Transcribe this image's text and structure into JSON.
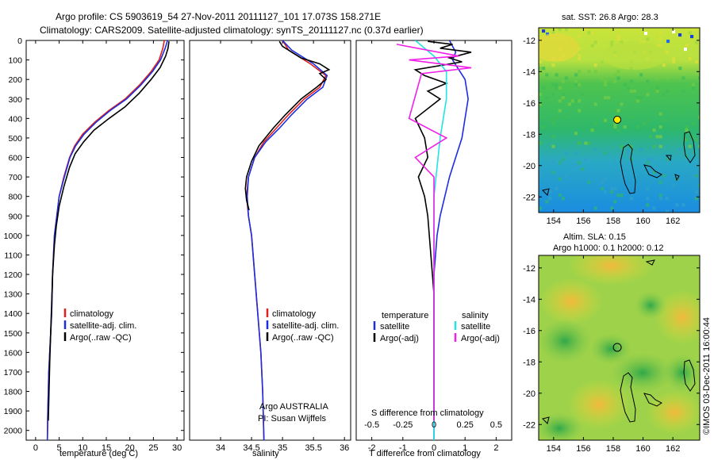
{
  "header": {
    "line1": "Argo profile: CS 5903619_54 27-Nov-2011 20111127_101 17.073S 158.271E",
    "line2": "Climatology: CARS2009. Satellite-adjusted climatology: synTS_20111127.nc (0.37d earlier)"
  },
  "colors": {
    "climatology": "#e0201c",
    "satellite": "#1c2ee0",
    "argo": "#000000",
    "salinity_satellite": "#22e4e4",
    "salinity_argo": "#f020e8"
  },
  "chart_data": [
    {
      "type": "line",
      "title": "temperature",
      "xlabel": "temperature (deg C)",
      "ylabel": "",
      "xlim": [
        -2,
        31.5
      ],
      "ylim": [
        2050,
        0
      ],
      "xticks": [
        "0",
        "5",
        "10",
        "15",
        "20",
        "25",
        "30"
      ],
      "xtick_values": [
        0,
        5,
        10,
        15,
        20,
        25,
        30
      ],
      "yticks": [
        "0",
        "100",
        "200",
        "300",
        "400",
        "500",
        "600",
        "700",
        "800",
        "900",
        "1000",
        "1100",
        "1200",
        "1300",
        "1400",
        "1500",
        "1600",
        "1700",
        "1800",
        "1900",
        "2000"
      ],
      "ytick_values": [
        0,
        100,
        200,
        300,
        400,
        500,
        600,
        700,
        800,
        900,
        1000,
        1100,
        1200,
        1300,
        1400,
        1500,
        1600,
        1700,
        1800,
        1900,
        2000
      ],
      "legend": [
        "climatology",
        "satellite-adj. clim.",
        "Argo(..raw -QC)"
      ],
      "legend_placement": "lower-center",
      "series": [
        {
          "name": "climatology",
          "color": "#e0201c",
          "x": [
            27.3,
            27.0,
            26.2,
            24.5,
            22.0,
            19.0,
            15.5,
            12.5,
            10.0,
            8.3,
            7.2,
            6.0,
            5.0,
            4.5,
            4.0,
            3.6,
            3.4,
            3.2,
            3.0,
            2.8,
            2.7,
            2.6,
            2.5
          ],
          "y": [
            0,
            40,
            100,
            160,
            230,
            300,
            360,
            420,
            480,
            540,
            600,
            700,
            800,
            900,
            1000,
            1200,
            1400,
            1500,
            1600,
            1700,
            1800,
            1900,
            2050
          ]
        },
        {
          "name": "satellite-adj. clim.",
          "color": "#1c2ee0",
          "x": [
            28.0,
            27.5,
            26.5,
            24.8,
            22.3,
            19.3,
            15.8,
            12.8,
            10.3,
            8.5,
            7.3,
            6.1,
            5.0,
            4.5,
            4.0,
            3.6,
            3.4,
            3.2,
            3.0,
            2.8,
            2.7,
            2.6,
            2.5
          ],
          "y": [
            0,
            40,
            100,
            160,
            230,
            300,
            360,
            420,
            480,
            540,
            600,
            700,
            800,
            900,
            1000,
            1200,
            1400,
            1500,
            1600,
            1700,
            1800,
            1900,
            2050
          ]
        },
        {
          "name": "Argo(..raw -QC)",
          "color": "#000000",
          "x": [
            28.3,
            28.1,
            27.6,
            26.4,
            24.5,
            22.0,
            19.0,
            15.6,
            12.4,
            10.2,
            8.4,
            7.2,
            6.0,
            5.0,
            4.4,
            4.0,
            3.6,
            3.4,
            3.2,
            3.0,
            2.9,
            2.8,
            2.7
          ],
          "y": [
            5,
            40,
            80,
            140,
            200,
            270,
            340,
            400,
            460,
            520,
            580,
            650,
            750,
            850,
            950,
            1050,
            1200,
            1350,
            1500,
            1650,
            1750,
            1850,
            1950
          ]
        }
      ]
    },
    {
      "type": "line",
      "title": "salinity",
      "xlabel": "salinity",
      "ylabel": "",
      "xlim": [
        33.5,
        36.1
      ],
      "ylim": [
        2050,
        0
      ],
      "xticks": [
        "34",
        "34.5",
        "35",
        "35.5",
        "36"
      ],
      "xtick_values": [
        34,
        34.5,
        35,
        35.5,
        36
      ],
      "legend": [
        "climatology",
        "satellite-adj. clim.",
        "Argo(..raw -QC)"
      ],
      "legend_placement": "lower-center",
      "annotations": [
        "Argo AUSTRALIA",
        "PI: Susan Wijffels"
      ],
      "series": [
        {
          "name": "climatology",
          "color": "#e0201c",
          "x": [
            35.0,
            35.1,
            35.45,
            35.7,
            35.6,
            35.35,
            35.1,
            34.9,
            34.7,
            34.55,
            34.45,
            34.42,
            34.45,
            34.5,
            34.55,
            34.6,
            34.65,
            34.68,
            34.7
          ],
          "y": [
            0,
            50,
            120,
            180,
            240,
            300,
            380,
            450,
            520,
            600,
            700,
            800,
            900,
            1000,
            1200,
            1400,
            1600,
            1800,
            2050
          ]
        },
        {
          "name": "satellite-adj. clim.",
          "color": "#1c2ee0",
          "x": [
            35.0,
            35.15,
            35.5,
            35.72,
            35.65,
            35.4,
            35.15,
            34.95,
            34.73,
            34.55,
            34.45,
            34.43,
            34.45,
            34.5,
            34.55,
            34.6,
            34.65,
            34.68,
            34.7
          ],
          "y": [
            0,
            50,
            120,
            180,
            240,
            300,
            380,
            450,
            520,
            600,
            700,
            800,
            900,
            1000,
            1200,
            1400,
            1600,
            1800,
            2050
          ]
        },
        {
          "name": "Argo(..raw -QC)",
          "color": "#000000",
          "x": [
            34.95,
            35.0,
            35.3,
            35.6,
            35.75,
            35.6,
            35.7,
            35.55,
            35.3,
            35.05,
            34.85,
            34.62,
            34.5,
            34.42,
            34.4,
            34.42,
            34.46
          ],
          "y": [
            5,
            30,
            90,
            120,
            150,
            170,
            200,
            240,
            300,
            380,
            450,
            540,
            620,
            700,
            760,
            820,
            870
          ]
        }
      ]
    },
    {
      "type": "line",
      "title": "difference from climatology",
      "xlabel": "T difference from climatology",
      "xlabel2": "S difference from climatology",
      "xlim": [
        -2.5,
        2.5
      ],
      "ylim": [
        2050,
        0
      ],
      "xticks": [
        "-2",
        "-1",
        "0",
        "1",
        "2"
      ],
      "xtick_values": [
        -2,
        -1,
        0,
        1,
        2
      ],
      "xticks_s": [
        "-0.5",
        "-0.25",
        "0",
        "0.25",
        "0.5"
      ],
      "xtick_values_s": [
        -0.5,
        -0.25,
        0,
        0.25,
        0.5
      ],
      "legend_titles": [
        "temperature",
        "salinity"
      ],
      "legend": [
        "satellite",
        "Argo(-adj)",
        "satellite",
        "Argo(-adj)"
      ],
      "legend_placement": "lower-center",
      "series": [
        {
          "name": "temperature satellite",
          "color": "#1c2ee0",
          "x": [
            0.5,
            0.7,
            0.6,
            0.8,
            1.0,
            1.1,
            1.0,
            0.9,
            0.7,
            0.5,
            0.35,
            0.2,
            0.1,
            0.05,
            0.0,
            0.0,
            0.0,
            0.0
          ],
          "y": [
            0,
            60,
            100,
            150,
            200,
            300,
            400,
            500,
            600,
            700,
            800,
            900,
            1000,
            1100,
            1200,
            1400,
            1700,
            2050
          ]
        },
        {
          "name": "temperature Argo(-adj)",
          "color": "#000000",
          "x": [
            -0.2,
            0.6,
            0.2,
            1.2,
            0.5,
            0.9,
            -0.6,
            -0.3,
            0.4,
            -0.2,
            0.2,
            -0.6,
            -0.3,
            -0.2,
            -0.5,
            -0.3,
            -0.2,
            -0.1,
            0.0,
            0.0,
            0.0
          ],
          "y": [
            5,
            20,
            40,
            60,
            90,
            110,
            150,
            180,
            220,
            260,
            300,
            400,
            500,
            600,
            700,
            800,
            900,
            1100,
            1300,
            1600,
            1950
          ]
        },
        {
          "name": "salinity satellite",
          "color": "#22e4e4",
          "x": [
            -0.15,
            0.0,
            0.1,
            0.1,
            0.05,
            0.0,
            0.0,
            0.0,
            0.0,
            0.0
          ],
          "y": [
            0,
            80,
            160,
            300,
            500,
            800,
            1000,
            1200,
            1600,
            2050
          ]
        },
        {
          "name": "salinity Argo(-adj)",
          "color": "#f020e8",
          "x": [
            -0.3,
            0.2,
            -0.2,
            0.3,
            -0.1,
            -0.2,
            0.1,
            -0.15,
            0.0,
            0.0,
            0.0
          ],
          "y": [
            20,
            80,
            100,
            140,
            170,
            400,
            500,
            600,
            700,
            900,
            1950
          ]
        }
      ]
    },
    {
      "type": "heatmap",
      "title": "sat. SST: 26.8 Argo: 28.3",
      "xticks": [
        "154",
        "156",
        "158",
        "160",
        "162"
      ],
      "xtick_values": [
        154,
        156,
        158,
        160,
        162
      ],
      "yticks": [
        "-12",
        "-14",
        "-16",
        "-18",
        "-20",
        "-22"
      ],
      "ytick_values": [
        -12,
        -14,
        -16,
        -18,
        -20,
        -22
      ],
      "xlim": [
        153,
        163.8
      ],
      "ylim": [
        -23,
        -11.2
      ],
      "marker": {
        "lon": 158.271,
        "lat": -17.073
      }
    },
    {
      "type": "heatmap",
      "title": "Altim. SLA: 0.15",
      "subtitle": "Argo h1000: 0.1 h2000: 0.12",
      "xticks": [
        "154",
        "156",
        "158",
        "160",
        "162"
      ],
      "xtick_values": [
        154,
        156,
        158,
        160,
        162
      ],
      "yticks": [
        "-12",
        "-14",
        "-16",
        "-18",
        "-20",
        "-22"
      ],
      "ytick_values": [
        -12,
        -14,
        -16,
        -18,
        -20,
        -22
      ],
      "xlim": [
        153,
        163.8
      ],
      "ylim": [
        -23,
        -11.2
      ],
      "marker": {
        "lon": 158.271,
        "lat": -17.073
      }
    }
  ],
  "side_label": "©IMOS 03-Dec-2011 16:00:44"
}
